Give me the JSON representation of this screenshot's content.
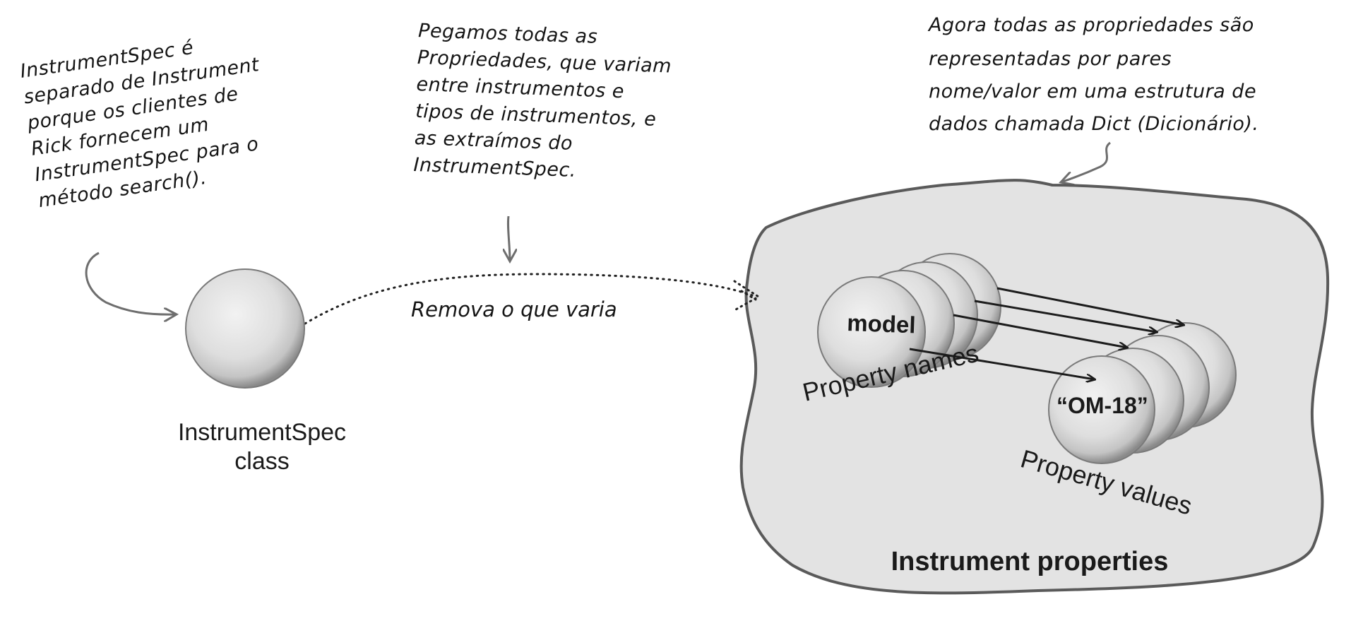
{
  "notes": {
    "left": [
      "InstrumentSpec é",
      "separado de Instrument",
      "porque os clientes de",
      "Rick fornecem um",
      "InstrumentSpec para o",
      "método search()."
    ],
    "middle": [
      "Pegamos todas as",
      "Propriedades, que variam",
      "entre instrumentos e",
      "tipos de instrumentos, e",
      "as extraímos do",
      "InstrumentSpec."
    ],
    "right": [
      "Agora todas as propriedades são",
      "representadas por pares",
      "nome/valor em uma estrutura de",
      "dados chamada Dict (Dicionário)."
    ]
  },
  "spec": {
    "caption_line1": "InstrumentSpec",
    "caption_line2": "class"
  },
  "flow": {
    "label": "Remova o que varia"
  },
  "blob": {
    "title": "Instrument properties",
    "names_label": "Property names",
    "values_label": "Property values",
    "name_key": "model",
    "value_key": "“OM-18”"
  },
  "colors": {
    "blob_fill": "#e3e3e3",
    "outline": "#5a5a5a",
    "arrow_gray": "#6e6e6e",
    "arrow_dark": "#1c1c1c"
  }
}
